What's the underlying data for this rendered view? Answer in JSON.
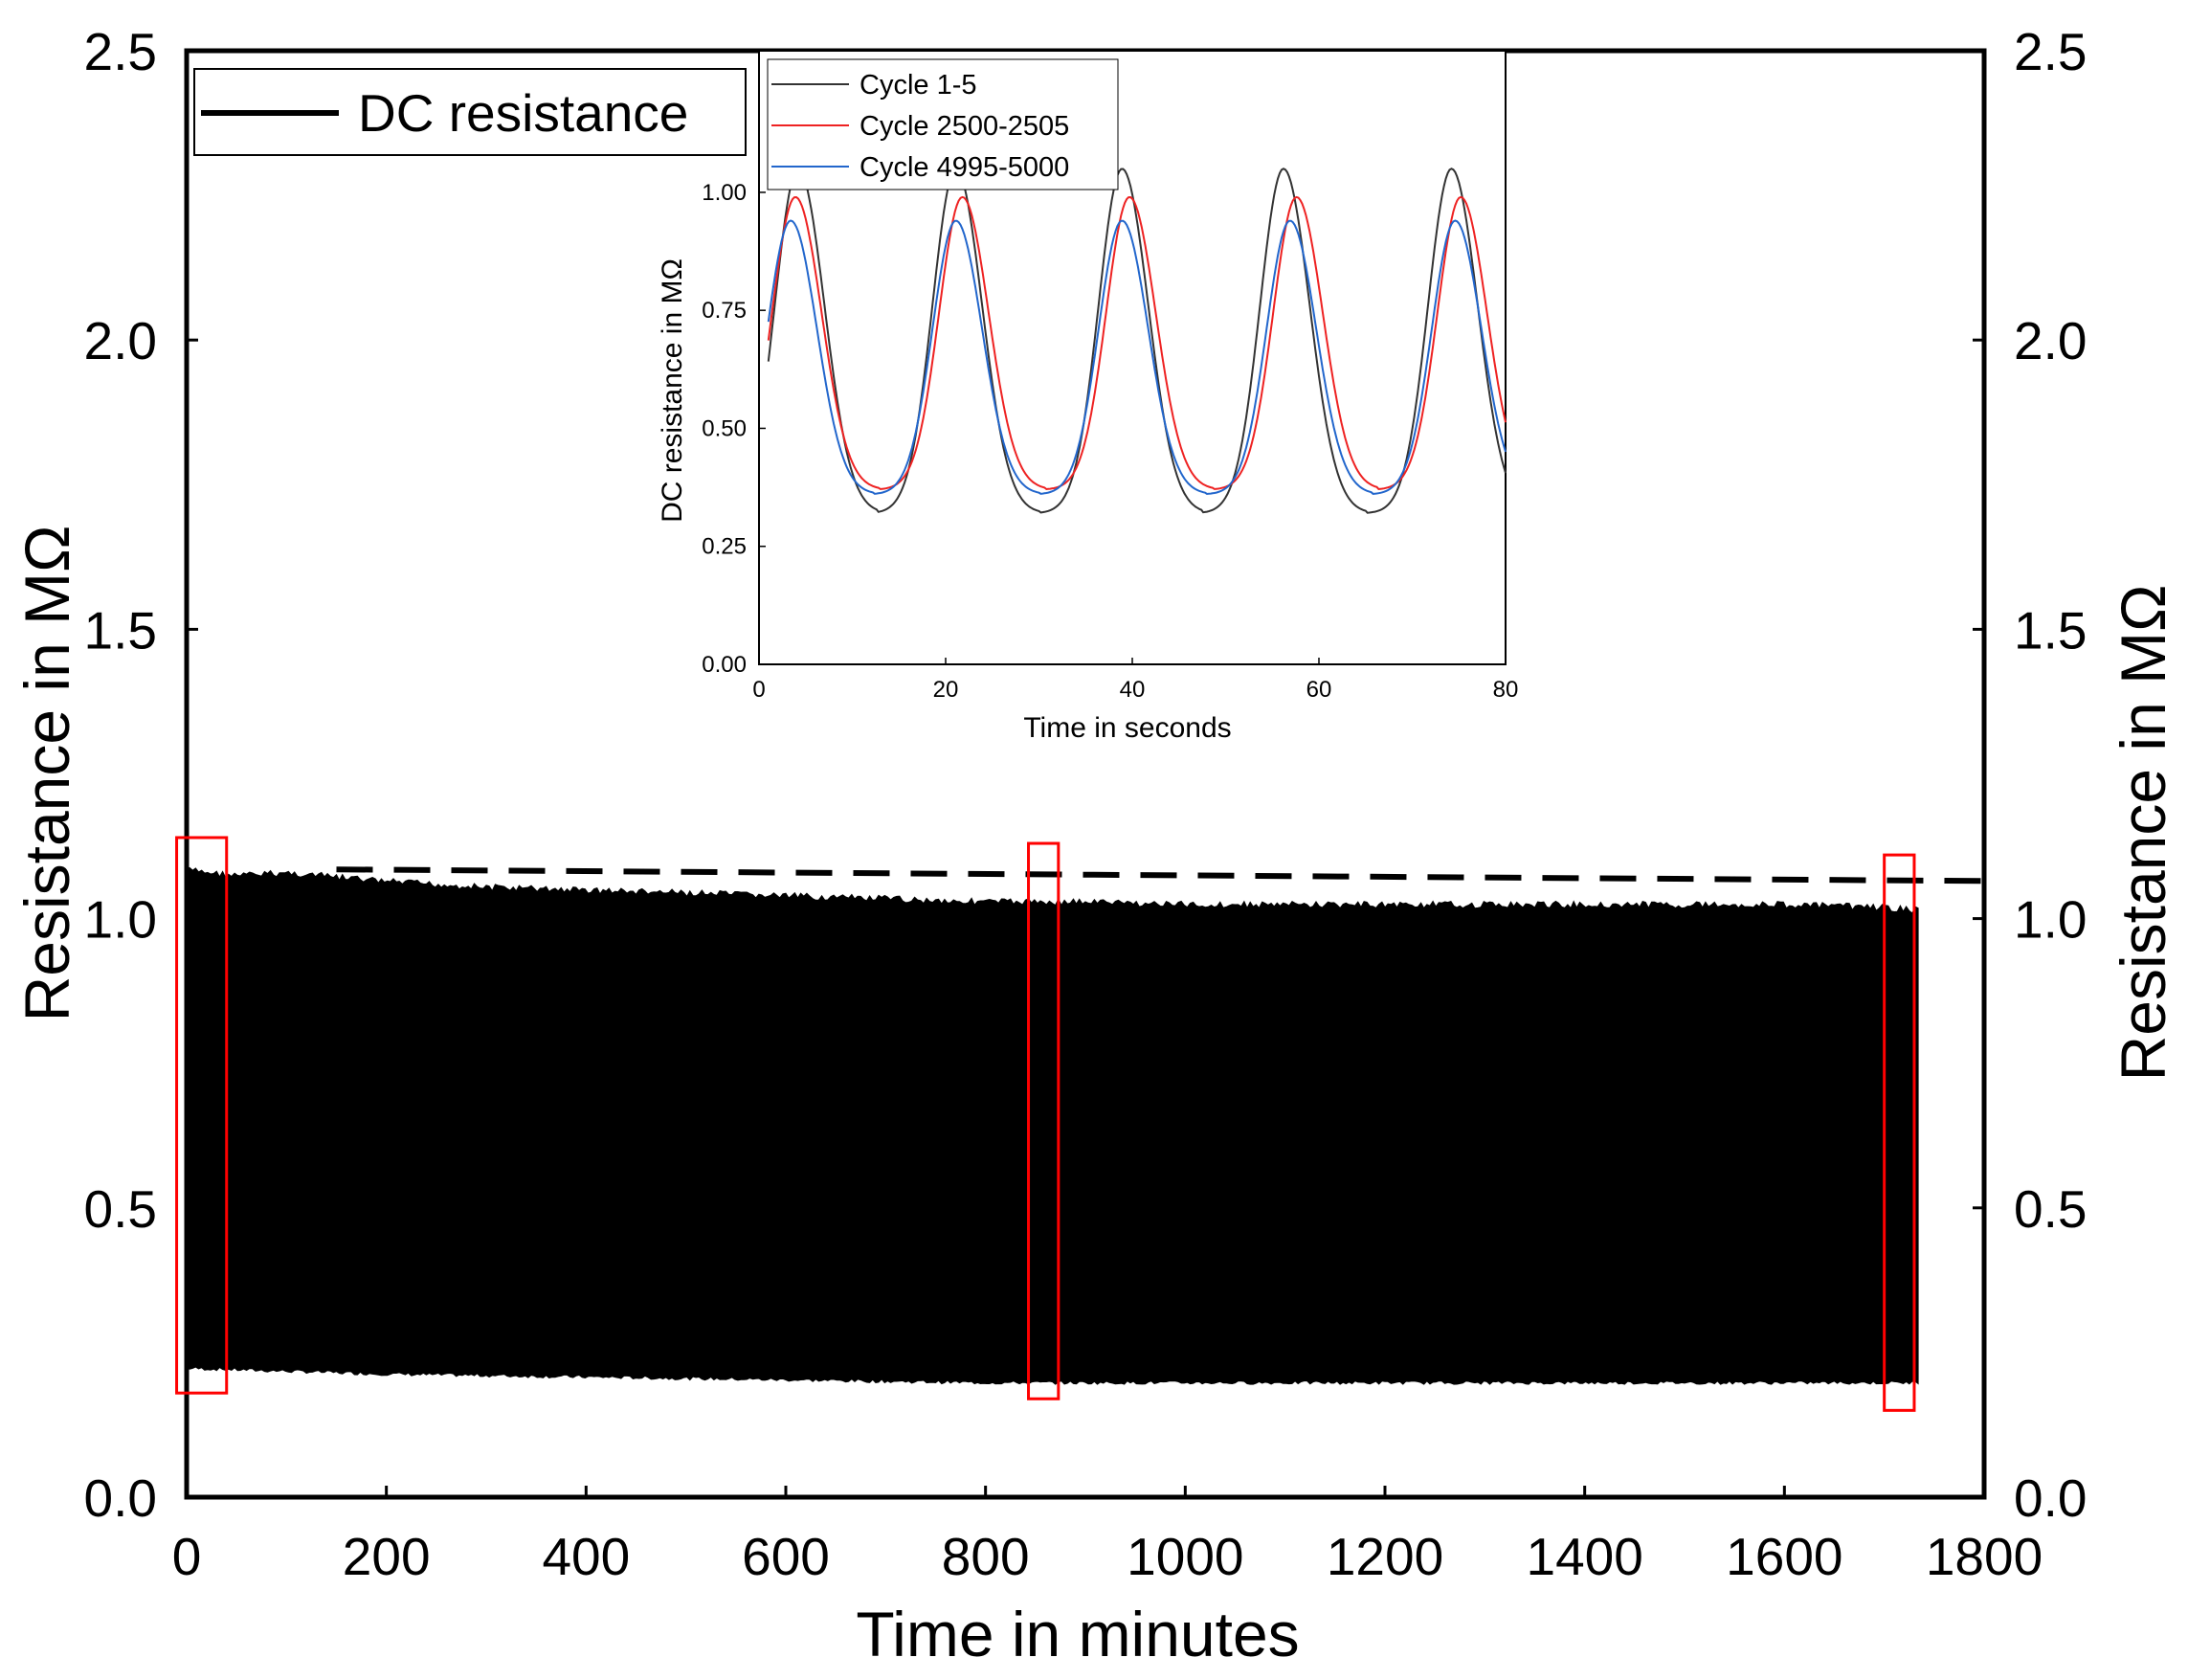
{
  "chart_data": [
    {
      "type": "line",
      "role": "main",
      "xlabel": "Time in minutes",
      "ylabel_left": "Resistance in MΩ",
      "ylabel_right": "Resistance in MΩ",
      "xlim": [
        0,
        1800
      ],
      "ylim": [
        0,
        2.5
      ],
      "xticks": [
        "0",
        "200",
        "400",
        "600",
        "800",
        "1000",
        "1200",
        "1400",
        "1600",
        "1800"
      ],
      "yticks": [
        "0.0",
        "0.5",
        "1.0",
        "1.5",
        "2.0",
        "2.5"
      ],
      "legend": {
        "position": "top-left",
        "entries": [
          "DC resistance"
        ]
      },
      "series": [
        {
          "name": "DC resistance",
          "color": "#000000",
          "x_end": 1735,
          "upper_envelope": {
            "x": [
              0,
              50,
              100,
              200,
              300,
              400,
              500,
              600,
              700,
              800,
              900,
              1000,
              1100,
              1200,
              1300,
              1400,
              1500,
              1600,
              1700,
              1735
            ],
            "y": [
              1.09,
              1.08,
              1.085,
              1.07,
              1.06,
              1.055,
              1.05,
              1.045,
              1.04,
              1.035,
              1.035,
              1.03,
              1.03,
              1.03,
              1.03,
              1.03,
              1.03,
              1.03,
              1.025,
              1.02
            ]
          },
          "lower_envelope": {
            "x": [
              0,
              100,
              200,
              400,
              600,
              800,
              1000,
              1200,
              1400,
              1600,
              1735
            ],
            "y": [
              0.22,
              0.215,
              0.21,
              0.205,
              0.2,
              0.195,
              0.195,
              0.195,
              0.195,
              0.195,
              0.195
            ]
          }
        }
      ],
      "reference_line": {
        "style": "dashed",
        "color": "#000000",
        "x": [
          150,
          1800
        ],
        "y": [
          1.085,
          1.065
        ]
      },
      "highlight_boxes": [
        {
          "x": [
            -10,
            40
          ],
          "y": [
            0.18,
            1.14
          ],
          "color": "#ff0000"
        },
        {
          "x": [
            843,
            873
          ],
          "y": [
            0.17,
            1.13
          ],
          "color": "#ff0000"
        },
        {
          "x": [
            1700,
            1730
          ],
          "y": [
            0.15,
            1.11
          ],
          "color": "#ff0000"
        }
      ]
    },
    {
      "type": "line",
      "role": "inset",
      "xlabel": "Time in seconds",
      "ylabel": "DC resistance in MΩ",
      "xlim": [
        0,
        80
      ],
      "ylim": [
        0,
        1.3
      ],
      "xticks": [
        "0",
        "20",
        "40",
        "60",
        "80"
      ],
      "yticks": [
        "0.00",
        "0.25",
        "0.50",
        "0.75",
        "1.00"
      ],
      "legend": {
        "position": "top-left",
        "entries": [
          "Cycle 1-5",
          "Cycle 2500-2505",
          "Cycle 4995-5000"
        ]
      },
      "period_seconds": 17.6,
      "series": [
        {
          "name": "Cycle 1-5",
          "color": "#333333",
          "peak_times": [
            4.2,
            21.1,
            38.9,
            56.2,
            74.2
          ],
          "max": 1.05,
          "min": 0.32
        },
        {
          "name": "Cycle 2500-2505",
          "color": "#ee2222",
          "peak_times": [
            3.9,
            21.8,
            39.7,
            57.6,
            75.2
          ],
          "max": 0.99,
          "min": 0.37
        },
        {
          "name": "Cycle 4995-5000",
          "color": "#2266cc",
          "peak_times": [
            3.4,
            21.1,
            38.9,
            56.9,
            74.6
          ],
          "max": 0.94,
          "min": 0.36
        }
      ]
    }
  ]
}
